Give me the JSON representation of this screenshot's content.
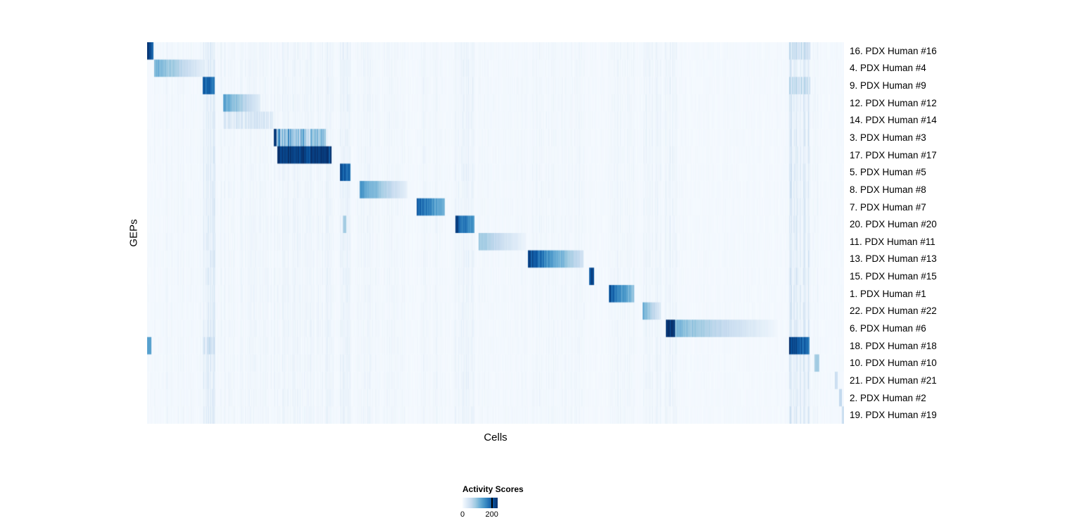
{
  "chart_data": {
    "type": "heatmap",
    "xlabel": "Cells",
    "ylabel": "GEPs",
    "legend": {
      "title": "Activity Scores",
      "tick_labels": [
        "0",
        "200"
      ],
      "tick_values": [
        0,
        200
      ],
      "vmin": 0,
      "vmax": 240
    },
    "colormap": {
      "name": "Blues",
      "stops": [
        "#f7fbff",
        "#deebf7",
        "#c6dbef",
        "#9ecae1",
        "#6baed6",
        "#4292c6",
        "#2171b5",
        "#08519c",
        "#08306b"
      ]
    },
    "background_value": 0.012,
    "bands": [
      {
        "x0": 0.01,
        "x1": 0.082,
        "v": 0.025
      },
      {
        "x0": 0.079,
        "x1": 0.097,
        "v": 0.09
      },
      {
        "x0": 0.105,
        "x1": 0.178,
        "v": 0.035
      },
      {
        "x0": 0.181,
        "x1": 0.268,
        "v": 0.04
      },
      {
        "x0": 0.276,
        "x1": 0.292,
        "v": 0.05
      },
      {
        "x0": 0.3,
        "x1": 0.375,
        "v": 0.03
      },
      {
        "x0": 0.385,
        "x1": 0.428,
        "v": 0.03
      },
      {
        "x0": 0.44,
        "x1": 0.47,
        "v": 0.05
      },
      {
        "x0": 0.475,
        "x1": 0.545,
        "v": 0.02
      },
      {
        "x0": 0.545,
        "x1": 0.628,
        "v": 0.03
      },
      {
        "x0": 0.66,
        "x1": 0.7,
        "v": 0.03
      },
      {
        "x0": 0.71,
        "x1": 0.738,
        "v": 0.04
      },
      {
        "x0": 0.742,
        "x1": 0.76,
        "v": 0.05
      },
      {
        "x0": 0.92,
        "x1": 0.952,
        "v": 0.1
      },
      {
        "x0": 0.955,
        "x1": 0.965,
        "v": 0.03
      }
    ],
    "rows": [
      {
        "label": "16. PDX Human #16",
        "segments": [
          {
            "x0": 0.0,
            "x1": 0.009,
            "v0": 0.98,
            "v1": 0.75
          },
          {
            "x0": 0.921,
            "x1": 0.951,
            "v": 0.22,
            "striped": true
          }
        ]
      },
      {
        "label": "4. PDX Human #4",
        "segments": [
          {
            "x0": 0.01,
            "x1": 0.083,
            "v0": 0.5,
            "v1": 0.08
          }
        ]
      },
      {
        "label": "9. PDX Human #9",
        "segments": [
          {
            "x0": 0.079,
            "x1": 0.096,
            "v0": 0.88,
            "v1": 0.7
          },
          {
            "x0": 0.921,
            "x1": 0.951,
            "v": 0.25,
            "striped": true
          }
        ]
      },
      {
        "label": "12. PDX Human #12",
        "segments": [
          {
            "x0": 0.109,
            "x1": 0.162,
            "v0": 0.55,
            "v1": 0.1
          }
        ]
      },
      {
        "label": "14. PDX Human #14",
        "segments": [
          {
            "x0": 0.109,
            "x1": 0.18,
            "v": 0.14,
            "striped": true
          }
        ]
      },
      {
        "label": "3. PDX Human #3",
        "segments": [
          {
            "x0": 0.181,
            "x1": 0.185,
            "v": 0.95
          },
          {
            "x0": 0.186,
            "x1": 0.256,
            "v0": 0.55,
            "v1": 0.35,
            "striped": true
          }
        ]
      },
      {
        "label": "17. PDX Human #17",
        "segments": [
          {
            "x0": 0.186,
            "x1": 0.264,
            "v0": 0.98,
            "v1": 0.92
          }
        ]
      },
      {
        "label": "5. PDX Human #5",
        "segments": [
          {
            "x0": 0.276,
            "x1": 0.291,
            "v0": 0.9,
            "v1": 0.75
          }
        ]
      },
      {
        "label": "8. PDX Human #8",
        "segments": [
          {
            "x0": 0.305,
            "x1": 0.373,
            "v0": 0.6,
            "v1": 0.08
          }
        ]
      },
      {
        "label": "7. PDX Human #7",
        "segments": [
          {
            "x0": 0.386,
            "x1": 0.427,
            "v0": 0.82,
            "v1": 0.45
          }
        ]
      },
      {
        "label": "20. PDX Human #20",
        "segments": [
          {
            "x0": 0.28,
            "x1": 0.285,
            "v": 0.35
          },
          {
            "x0": 0.442,
            "x1": 0.469,
            "v0": 0.9,
            "v1": 0.55
          }
        ]
      },
      {
        "label": "11. PDX Human #11",
        "segments": [
          {
            "x0": 0.475,
            "x1": 0.543,
            "v0": 0.38,
            "v1": 0.05
          }
        ]
      },
      {
        "label": "13. PDX Human #13",
        "segments": [
          {
            "x0": 0.546,
            "x1": 0.578,
            "v0": 0.92,
            "v1": 0.6
          },
          {
            "x0": 0.578,
            "x1": 0.626,
            "v0": 0.6,
            "v1": 0.18
          }
        ]
      },
      {
        "label": "15. PDX Human #15",
        "segments": [
          {
            "x0": 0.634,
            "x1": 0.641,
            "v": 0.9
          }
        ]
      },
      {
        "label": "1. PDX Human #1",
        "segments": [
          {
            "x0": 0.662,
            "x1": 0.698,
            "v0": 0.85,
            "v1": 0.4
          }
        ]
      },
      {
        "label": "22. PDX Human #22",
        "segments": [
          {
            "x0": 0.711,
            "x1": 0.737,
            "v0": 0.5,
            "v1": 0.12
          }
        ]
      },
      {
        "label": "6. PDX Human #6",
        "segments": [
          {
            "x0": 0.744,
            "x1": 0.757,
            "v": 0.97
          },
          {
            "x0": 0.757,
            "x1": 0.905,
            "v0": 0.45,
            "v1": 0.03
          }
        ]
      },
      {
        "label": "18. PDX Human #18",
        "segments": [
          {
            "x0": 0.0,
            "x1": 0.006,
            "v": 0.55
          },
          {
            "x0": 0.079,
            "x1": 0.097,
            "v": 0.2,
            "striped": true
          },
          {
            "x0": 0.921,
            "x1": 0.95,
            "v0": 0.95,
            "v1": 0.75
          }
        ]
      },
      {
        "label": "10. PDX Human #10",
        "segments": [
          {
            "x0": 0.957,
            "x1": 0.964,
            "v": 0.35
          }
        ]
      },
      {
        "label": "21. PDX Human #21",
        "segments": [
          {
            "x0": 0.986,
            "x1": 0.99,
            "v": 0.22
          }
        ]
      },
      {
        "label": "2. PDX Human #2",
        "segments": [
          {
            "x0": 0.992,
            "x1": 0.996,
            "v": 0.28
          }
        ]
      },
      {
        "label": "19. PDX Human #19",
        "segments": [
          {
            "x0": 0.996,
            "x1": 1.0,
            "v": 0.22
          }
        ]
      }
    ]
  }
}
